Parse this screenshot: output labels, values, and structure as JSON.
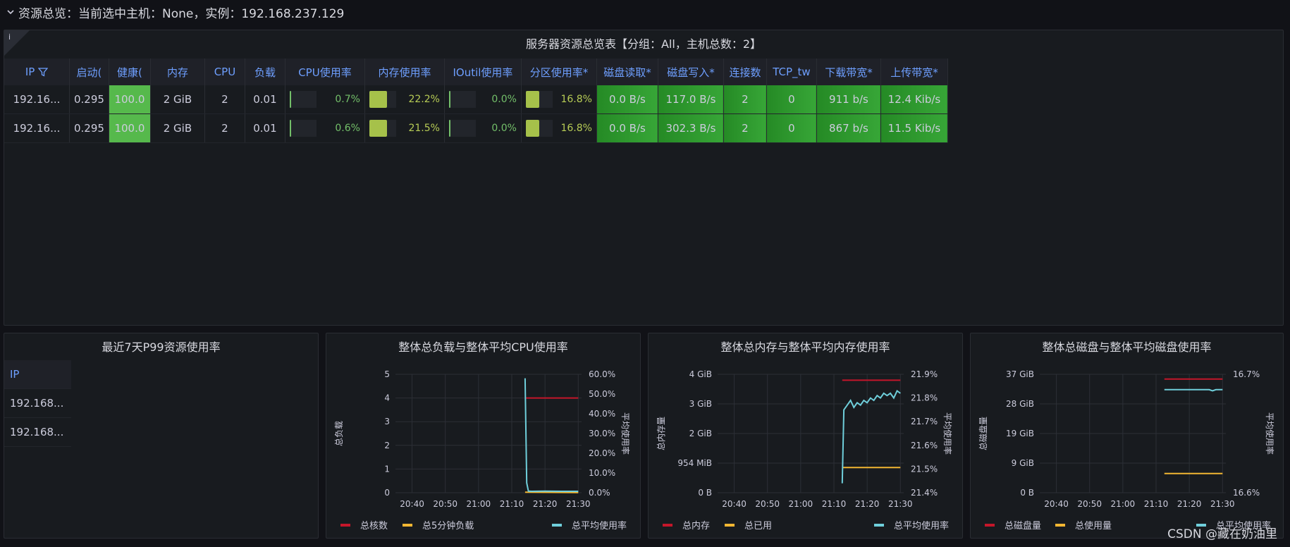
{
  "row_title": "资源总览：当前选中主机：None，实例：192.168.237.129",
  "overview": {
    "title": "服务器资源总览表【分组：All，主机总数：2】",
    "info_icon": "i",
    "columns": [
      "IP",
      "启动(",
      "健康(",
      "内存",
      "CPU",
      "负载",
      "CPU使用率",
      "内存使用率",
      "IOutil使用率",
      "分区使用率*",
      "磁盘读取*",
      "磁盘写入*",
      "连接数",
      "TCP_tw",
      "下载带宽*",
      "上传带宽*"
    ],
    "rows": [
      {
        "ip": "192.16...",
        "uptime": "0.295",
        "health": "100.0",
        "mem": "2 GiB",
        "cpu": "2",
        "load": "0.01",
        "cpu_use": "0.7%",
        "cpu_frac": 0.007,
        "mem_use": "22.2%",
        "mem_frac": 0.222,
        "io_use": "0.0%",
        "io_frac": 0.0,
        "part_use": "16.8%",
        "part_frac": 0.168,
        "disk_read": "0.0 B/s",
        "disk_write": "117.0 B/s",
        "conn": "2",
        "tcp_tw": "0",
        "down": "911 b/s",
        "up": "12.4 Kib/s"
      },
      {
        "ip": "192.16...",
        "uptime": "0.295",
        "health": "100.0",
        "mem": "2 GiB",
        "cpu": "2",
        "load": "0.01",
        "cpu_use": "0.6%",
        "cpu_frac": 0.006,
        "mem_use": "21.5%",
        "mem_frac": 0.215,
        "io_use": "0.0%",
        "io_frac": 0.0,
        "part_use": "16.8%",
        "part_frac": 0.168,
        "disk_read": "0.0 B/s",
        "disk_write": "302.3 B/s",
        "conn": "2",
        "tcp_tw": "0",
        "down": "867 b/s",
        "up": "11.5 Kib/s"
      }
    ]
  },
  "p99": {
    "title": "最近7天P99资源使用率",
    "header": "IP",
    "rows": [
      "192.168...",
      "192.168..."
    ]
  },
  "chart_data": [
    {
      "type": "line",
      "title": "整体总负载与整体平均CPU使用率",
      "ylabel": "总负载",
      "y2label": "平均使用率",
      "x_ticks": [
        "20:40",
        "20:50",
        "21:00",
        "21:10",
        "21:20",
        "21:30"
      ],
      "y_ticks": [
        "0",
        "1",
        "2",
        "3",
        "4",
        "5"
      ],
      "y2_ticks": [
        "0.0%",
        "10.0%",
        "20.0%",
        "30.0%",
        "40.0%",
        "50.0%",
        "60.0%"
      ],
      "ylim": [
        0,
        5
      ],
      "y2lim": [
        0,
        60
      ],
      "series": [
        {
          "name": "总核数",
          "color": "#c4162a",
          "axis": "left",
          "x": [
            "21:14",
            "21:30"
          ],
          "values": [
            4,
            4
          ]
        },
        {
          "name": "总5分钟负载",
          "color": "#f2b632",
          "axis": "left",
          "x": [
            "21:14",
            "21:30"
          ],
          "values": [
            0.02,
            0.01
          ]
        },
        {
          "name": "总平均使用率",
          "color": "#6fcfdb",
          "axis": "right",
          "x": [
            "21:14",
            "21:14.5",
            "21:15",
            "21:16",
            "21:20",
            "21:25",
            "21:30"
          ],
          "values": [
            58,
            5,
            0.8,
            0.7,
            0.8,
            0.7,
            0.7
          ]
        }
      ]
    },
    {
      "type": "line",
      "title": "整体总内存与整体平均内存使用率",
      "ylabel": "总内存量",
      "y2label": "平均使用率",
      "x_ticks": [
        "20:40",
        "20:50",
        "21:00",
        "21:10",
        "21:20",
        "21:30"
      ],
      "y_ticks": [
        "0 B",
        "954 MiB",
        "2 GiB",
        "3 GiB",
        "4 GiB"
      ],
      "y2_ticks": [
        "21.4%",
        "21.5%",
        "21.6%",
        "21.7%",
        "21.8%",
        "21.9%"
      ],
      "ylim": [
        0,
        4
      ],
      "y2lim": [
        21.4,
        21.9
      ],
      "series": [
        {
          "name": "总内存",
          "color": "#c4162a",
          "axis": "left",
          "x": [
            "21:12.5",
            "21:30"
          ],
          "values": [
            3.8,
            3.8
          ]
        },
        {
          "name": "总已用",
          "color": "#f2b632",
          "axis": "left",
          "x": [
            "21:12.5",
            "21:30"
          ],
          "values": [
            0.85,
            0.85
          ]
        },
        {
          "name": "总平均使用率",
          "color": "#6fcfdb",
          "axis": "right",
          "x": [
            "21:12.5",
            "21:13",
            "21:14",
            "21:15",
            "21:16",
            "21:17",
            "21:18",
            "21:19",
            "21:20",
            "21:21",
            "21:22",
            "21:23",
            "21:24",
            "21:25",
            "21:26",
            "21:27",
            "21:28",
            "21:29",
            "21:30"
          ],
          "values": [
            21.44,
            21.75,
            21.77,
            21.79,
            21.76,
            21.78,
            21.77,
            21.79,
            21.78,
            21.8,
            21.79,
            21.81,
            21.8,
            21.82,
            21.81,
            21.82,
            21.8,
            21.83,
            21.82
          ]
        }
      ]
    },
    {
      "type": "line",
      "title": "整体总磁盘与整体平均磁盘使用率",
      "ylabel": "总磁盘量",
      "y2label": "平均使用率",
      "x_ticks": [
        "20:40",
        "20:50",
        "21:00",
        "21:10",
        "21:20",
        "21:30"
      ],
      "y_ticks": [
        "0 B",
        "9 GiB",
        "19 GiB",
        "28 GiB",
        "37 GiB"
      ],
      "y2_ticks": [
        "16.6%",
        "16.7%"
      ],
      "ylim": [
        0,
        37
      ],
      "y2lim": [
        16.6,
        16.7
      ],
      "series": [
        {
          "name": "总磁盘量",
          "color": "#c4162a",
          "axis": "left",
          "x": [
            "21:12.5",
            "21:30"
          ],
          "values": [
            35.5,
            35.5
          ]
        },
        {
          "name": "总使用量",
          "color": "#f2b632",
          "axis": "left",
          "x": [
            "21:12.5",
            "21:30"
          ],
          "values": [
            6,
            6
          ]
        },
        {
          "name": "总平均使用率",
          "color": "#6fcfdb",
          "axis": "right",
          "x": [
            "21:12.5",
            "21:20",
            "21:26",
            "21:27",
            "21:28",
            "21:30"
          ],
          "values": [
            16.687,
            16.687,
            16.687,
            16.686,
            16.687,
            16.687
          ]
        }
      ]
    }
  ],
  "watermark": "CSDN @藏在奶油里"
}
